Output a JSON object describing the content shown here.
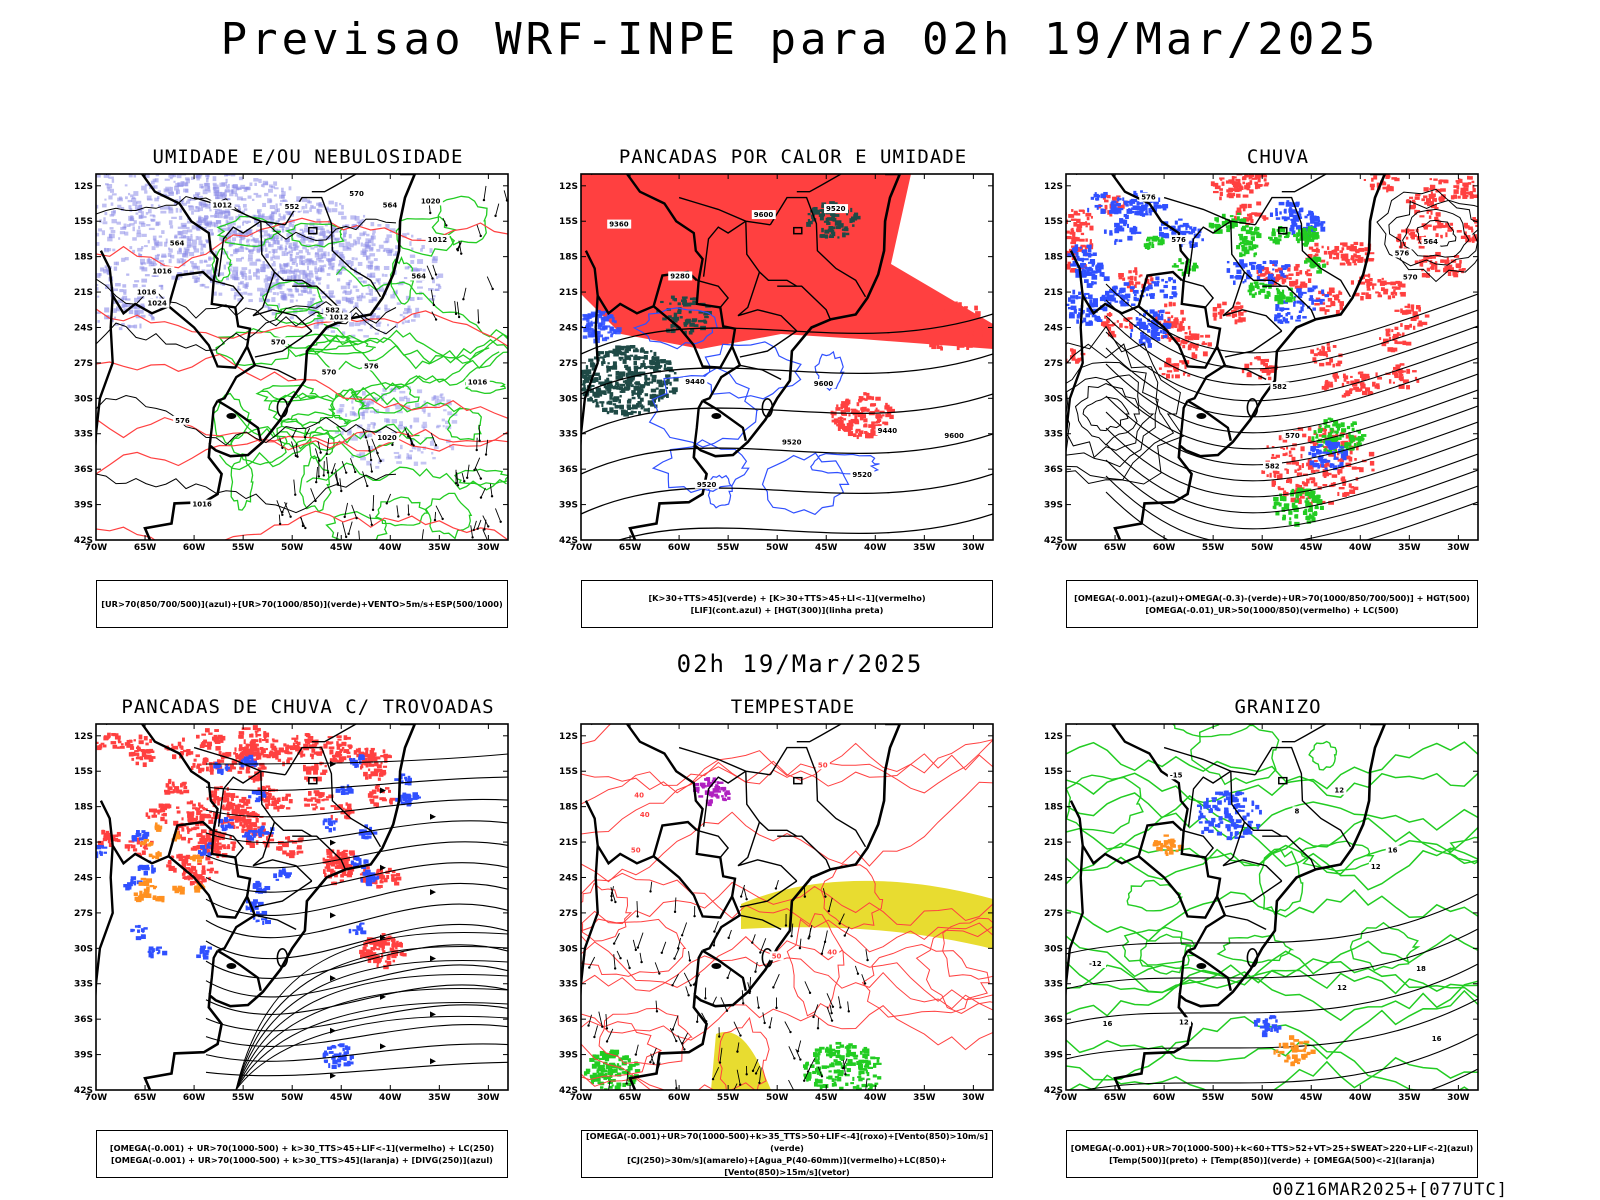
{
  "header": {
    "title": "Previsao WRF-INPE  para 02h 19/Mar/2025",
    "mid_time": "02h 19/Mar/2025",
    "run_stamp": "00Z16MAR2025+[077UTC]"
  },
  "axes": {
    "lat_labels": [
      "12S",
      "15S",
      "18S",
      "21S",
      "24S",
      "27S",
      "30S",
      "33S",
      "36S",
      "39S",
      "42S"
    ],
    "lon_labels": [
      "70W",
      "65W",
      "60W",
      "55W",
      "50W",
      "45W",
      "40W",
      "35W",
      "30W"
    ]
  },
  "colors": {
    "blue": "#3050ff",
    "lavender": "#8c8ce8",
    "green": "#22cc22",
    "red": "#ff4040",
    "darkteal": "#1f4a46",
    "yellow": "#e8dc30",
    "orange": "#ff9020",
    "purple": "#b020c0"
  },
  "panels": [
    {
      "id": "umidade",
      "title": "UMIDADE E/OU NEBULOSIDADE",
      "legend": [
        "[UR>70(850/700/500)](azul)+[UR>70(1000/850)](verde)+VENTO>5m/s+ESP(500/1000)"
      ],
      "contour_labels": [
        "1012",
        "1012",
        "1012",
        "1016",
        "1016",
        "1016",
        "1016",
        "1020",
        "1020",
        "1024",
        "570",
        "576",
        "564",
        "576",
        "570",
        "564",
        "552",
        "582",
        "564",
        "570"
      ]
    },
    {
      "id": "pancadas_calor",
      "title": "PANCADAS POR CALOR E UMIDADE",
      "legend": [
        "[K>30+TTS>45](verde) + [K>30+TTS>45+LI<-1](vermelho)",
        "[LIF](cont.azul) + [HGT(300)](linha preta)"
      ],
      "contour_labels": [
        "9600",
        "9600",
        "9520",
        "9600",
        "9520",
        "9520",
        "9440",
        "9360",
        "9280",
        "9440",
        "9520"
      ]
    },
    {
      "id": "chuva",
      "title": "CHUVA",
      "legend": [
        "[OMEGA(-0.001)-(azul)+OMEGA(-0.3)-(verde)+UR>70(1000/850/700/500)] + HGT(500)",
        "[OMEGA(-0.01)_UR>50(1000/850)(vermelho) + LC(500)"
      ],
      "contour_labels": [
        "582",
        "576",
        "576",
        "570",
        "564",
        "582",
        "576",
        "570"
      ]
    },
    {
      "id": "pancadas_trovoadas",
      "title": "PANCADAS DE CHUVA C/ TROVOADAS",
      "legend": [
        "[OMEGA(-0.001) + UR>70(1000-500) + k>30_TTS>45+LIF<-1](vermelho) + LC(250)",
        "[OMEGA(-0.001) + UR>70(1000-500) + k>30_TTS>45](laranja) + [DIVG(250)](azul)"
      ],
      "contour_labels": []
    },
    {
      "id": "tempestade",
      "title": "TEMPESTADE",
      "legend": [
        "[OMEGA(-0.001)+UR>70(1000-500)+k>35_TTS>50+LIF<-4](roxo)+[Vento(850)>10m/s](verde)",
        "[CJ(250)>30m/s](amarelo)+[Agua_P(40-60mm)](vermelho)+LC(850)+[Vento(850)>15m/s](vetor)"
      ],
      "contour_labels": [
        "40",
        "50",
        "40",
        "50",
        "40",
        "50"
      ]
    },
    {
      "id": "granizo",
      "title": "GRANIZO",
      "legend": [
        "[OMEGA(-0.001)+UR>70(1000-500)+k<60+TTS>52+VT>25+SWEAT>220+LIF<-2](azul)",
        "[Temp(500)](preto) + [Temp(850)](verde) + [OMEGA(500)<-2](laranja)"
      ],
      "contour_labels": [
        "16",
        "18",
        "12",
        "-12",
        "16",
        "-15",
        "12",
        "12",
        "16",
        "8",
        "12"
      ]
    }
  ]
}
